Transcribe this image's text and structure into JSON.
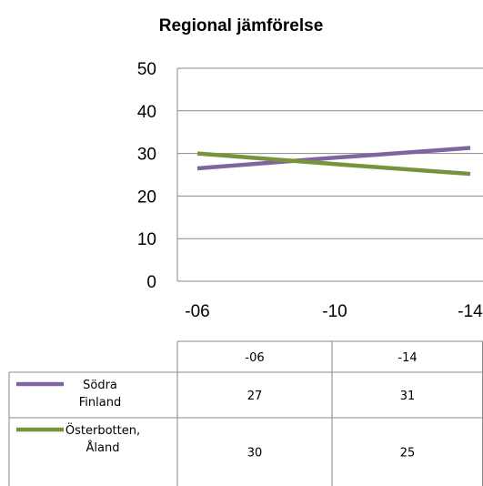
{
  "chart_data": {
    "type": "line",
    "title": "Regional jämförelse",
    "xlabel": "",
    "ylabel": "",
    "categories": [
      "-06",
      "-10",
      "-14"
    ],
    "ylim": [
      0,
      50
    ],
    "yticks": [
      0,
      10,
      20,
      30,
      40,
      50
    ],
    "grid": true,
    "series": [
      {
        "name": "Södra Finland",
        "color": "#8064a2",
        "values": [
          26.5,
          29,
          31.3
        ]
      },
      {
        "name": "Österbotten, Åland",
        "color": "#77933c",
        "values": [
          30,
          27.5,
          25.2
        ]
      }
    ],
    "data_table": {
      "columns": [
        "-06",
        "-14"
      ],
      "rows": [
        {
          "label_lines": [
            "Södra",
            "Finland"
          ],
          "values": [
            "27",
            "31"
          ]
        },
        {
          "label_lines": [
            "Österbotten,",
            "Åland"
          ],
          "values": [
            "30",
            "25"
          ]
        }
      ]
    }
  }
}
